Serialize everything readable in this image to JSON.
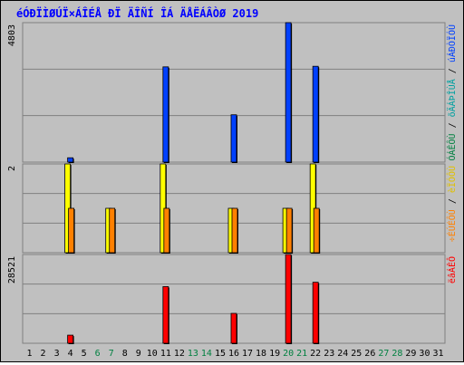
{
  "chart_data": [
    {
      "type": "bar",
      "title": "éÓÐÏÌØÚÏ×ÁÎÉÅ ÐÏ ÄÎÑÍ ÎÁ ÄÅËÁÂÒØ 2019",
      "y_max_label": "4803",
      "side_labels": [
        {
          "text": "ÓÁÊÔÙ",
          "color": "#008040"
        },
        {
          "text": " / ",
          "color": "#000000"
        },
        {
          "text": "õÄÁÞÎÙÅ",
          "color": "#00a0a0"
        },
        {
          "text": " / ",
          "color": "#000000"
        },
        {
          "text": "úÁÐÒÏÓÙ",
          "color": "#0040ff"
        }
      ],
      "series": [
        {
          "name": "úÁÐÒÏÓÙ",
          "color": "#0040ff",
          "values": [
            0,
            0,
            0,
            150,
            0,
            0,
            0,
            0,
            0,
            0,
            3280,
            0,
            0,
            0,
            0,
            1630,
            0,
            0,
            0,
            4803,
            0,
            3300,
            0,
            0,
            0,
            0,
            0,
            0,
            0,
            0,
            0
          ]
        }
      ],
      "ylim": [
        0,
        4803
      ]
    },
    {
      "type": "bar",
      "y_max_label": "2",
      "side_labels": [
        {
          "text": "÷ÉÚÉÔÙ",
          "color": "#ff8000"
        },
        {
          "text": " / ",
          "color": "#000000"
        },
        {
          "text": "èÏÓÔÙ",
          "color": "#e0c000"
        }
      ],
      "series": [
        {
          "name": "èÏÓÔÙ",
          "color": "#ffff00",
          "values": [
            0,
            0,
            0,
            2,
            0,
            0,
            1,
            0,
            0,
            0,
            2,
            0,
            0,
            0,
            0,
            1,
            0,
            0,
            0,
            1,
            0,
            2,
            0,
            0,
            0,
            0,
            0,
            0,
            0,
            0,
            0
          ]
        },
        {
          "name": "÷ÉÚÉÔÙ",
          "color": "#ff8000",
          "values": [
            0,
            0,
            0,
            1,
            0,
            0,
            1,
            0,
            0,
            0,
            1,
            0,
            0,
            0,
            0,
            1,
            0,
            0,
            0,
            1,
            0,
            1,
            0,
            0,
            0,
            0,
            0,
            0,
            0,
            0,
            0
          ]
        }
      ],
      "ylim": [
        0,
        2
      ]
    },
    {
      "type": "bar",
      "y_max_label": "28521",
      "side_labels": [
        {
          "text": "ëâÁÊÔ",
          "color": "#ff0000"
        }
      ],
      "series": [
        {
          "name": "ëâÁÊÔ",
          "color": "#ff0000",
          "values": [
            0,
            0,
            0,
            2600,
            0,
            0,
            0,
            0,
            0,
            0,
            18200,
            0,
            0,
            0,
            0,
            9600,
            0,
            0,
            0,
            28521,
            0,
            19600,
            0,
            0,
            0,
            0,
            0,
            0,
            0,
            0,
            0
          ]
        }
      ],
      "ylim": [
        0,
        28521
      ]
    }
  ],
  "days": [
    "1",
    "2",
    "3",
    "4",
    "5",
    "6",
    "7",
    "8",
    "9",
    "10",
    "11",
    "12",
    "13",
    "14",
    "15",
    "16",
    "17",
    "18",
    "19",
    "20",
    "21",
    "22",
    "23",
    "24",
    "25",
    "26",
    "27",
    "28",
    "29",
    "30",
    "31"
  ],
  "weekend_days": [
    "6",
    "7",
    "13",
    "14",
    "20",
    "21",
    "27",
    "28"
  ],
  "colors": {
    "weekday": "#000000",
    "weekend": "#008040",
    "grid": "#808080",
    "plot_bg": "#c0c0c0"
  }
}
